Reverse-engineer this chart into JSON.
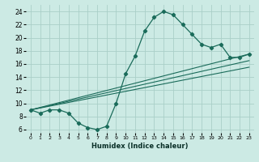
{
  "title": "",
  "xlabel": "Humidex (Indice chaleur)",
  "bg_color": "#cceae4",
  "grid_color": "#aacfc8",
  "line_color": "#1a6b5a",
  "xlim": [
    -0.5,
    23.5
  ],
  "ylim": [
    5.5,
    25.0
  ],
  "xticks": [
    0,
    1,
    2,
    3,
    4,
    5,
    6,
    7,
    8,
    9,
    10,
    11,
    12,
    13,
    14,
    15,
    16,
    17,
    18,
    19,
    20,
    21,
    22,
    23
  ],
  "yticks": [
    6,
    8,
    10,
    12,
    14,
    16,
    18,
    20,
    22,
    24
  ],
  "curve1_x": [
    0,
    1,
    2,
    3,
    4,
    5,
    6,
    7,
    8,
    9,
    10,
    11,
    12,
    13,
    14,
    15,
    16,
    17,
    18,
    19,
    20,
    21,
    22,
    23
  ],
  "curve1_y": [
    9.0,
    8.5,
    9.0,
    9.0,
    8.5,
    7.0,
    6.3,
    6.0,
    6.5,
    10.0,
    14.5,
    17.2,
    21.0,
    23.1,
    24.0,
    23.5,
    22.0,
    20.5,
    19.0,
    18.5,
    19.0,
    17.0,
    17.0,
    17.5
  ],
  "line2_x": [
    0,
    23
  ],
  "line2_y": [
    9.0,
    17.5
  ],
  "line3_x": [
    0,
    23
  ],
  "line3_y": [
    9.0,
    16.5
  ],
  "line4_x": [
    0,
    23
  ],
  "line4_y": [
    9.0,
    15.5
  ]
}
